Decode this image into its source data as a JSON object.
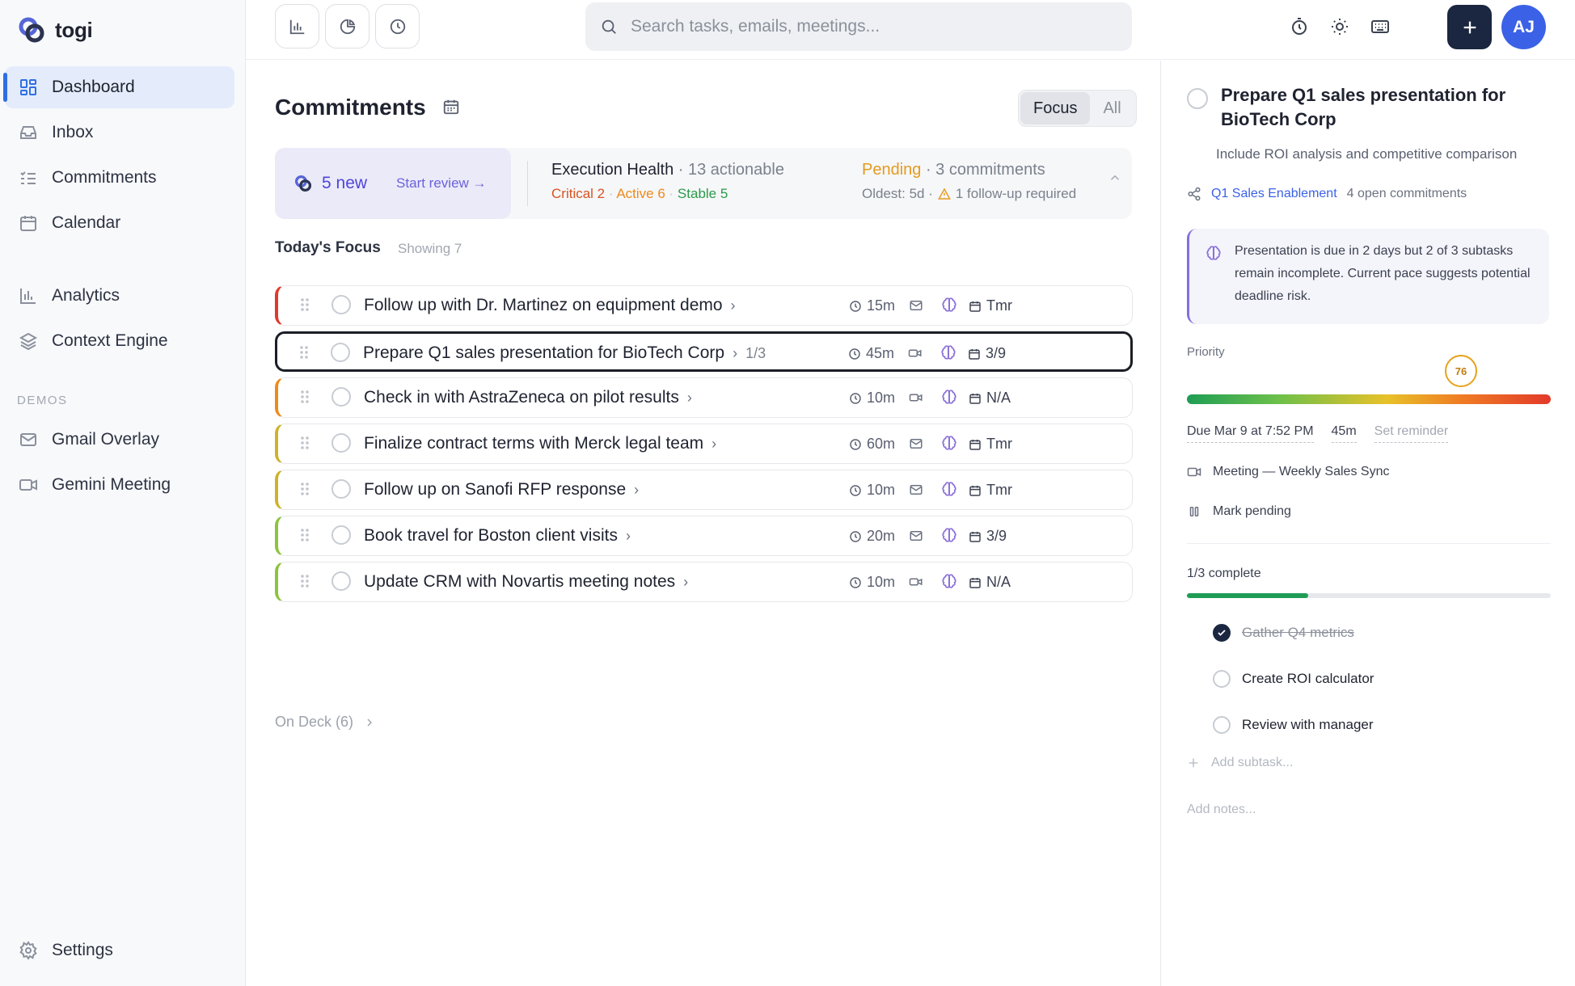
{
  "app": {
    "name": "togi"
  },
  "sidebar": {
    "items": [
      {
        "label": "Dashboard",
        "icon": "grid-icon",
        "active": true
      },
      {
        "label": "Inbox",
        "icon": "inbox-icon"
      },
      {
        "label": "Commitments",
        "icon": "list-check-icon"
      },
      {
        "label": "Calendar",
        "icon": "calendar-icon"
      },
      {
        "label": "Analytics",
        "icon": "bar-chart-icon"
      },
      {
        "label": "Context Engine",
        "icon": "layers-icon"
      }
    ],
    "section_label": "DEMOS",
    "demos": [
      {
        "label": "Gmail Overlay",
        "icon": "mail-icon"
      },
      {
        "label": "Gemini Meeting",
        "icon": "video-icon"
      }
    ],
    "settings_label": "Settings"
  },
  "topbar": {
    "search_placeholder": "Search tasks, emails, meetings...",
    "avatar_initials": "AJ"
  },
  "main": {
    "title": "Commitments",
    "view_toggle": {
      "options": [
        "Focus",
        "All"
      ],
      "selected": "Focus"
    },
    "summary": {
      "new_count": "5 new",
      "start_review": "Start review →",
      "health_title": "Execution Health",
      "actionable": "· 13 actionable",
      "critical": "Critical 2",
      "active": "Active 6",
      "stable": "Stable 5",
      "pending_label": "Pending",
      "pending_count": "· 3 commitments",
      "oldest": "Oldest: 5d ·",
      "followup": "1 follow-up required"
    },
    "focus_title": "Today's Focus",
    "focus_sub": "Showing 7",
    "tasks": [
      {
        "title": "Follow up with Dr. Martinez on equipment demo",
        "sub": "",
        "duration": "15m",
        "source": "mail",
        "due": "Tmr",
        "color": "#e0392b"
      },
      {
        "title": "Prepare Q1 sales presentation for BioTech Corp",
        "sub": "1/3",
        "duration": "45m",
        "source": "video",
        "due": "3/9",
        "color": "#1b1e26"
      },
      {
        "title": "Check in with AstraZeneca on pilot results",
        "sub": "",
        "duration": "10m",
        "source": "video",
        "due": "N/A",
        "color": "#ee8a1a"
      },
      {
        "title": "Finalize contract terms with Merck legal team",
        "sub": "",
        "duration": "60m",
        "source": "mail",
        "due": "Tmr",
        "color": "#cdb32a"
      },
      {
        "title": "Follow up on Sanofi RFP response",
        "sub": "",
        "duration": "10m",
        "source": "mail",
        "due": "Tmr",
        "color": "#cdb32a"
      },
      {
        "title": "Book travel for Boston client visits",
        "sub": "",
        "duration": "20m",
        "source": "mail",
        "due": "3/9",
        "color": "#8cc43c"
      },
      {
        "title": "Update CRM with Novartis meeting notes",
        "sub": "",
        "duration": "10m",
        "source": "video",
        "due": "N/A",
        "color": "#8cc43c"
      }
    ],
    "on_deck": "On Deck (6)"
  },
  "panel": {
    "title": "Prepare Q1 sales presentation for BioTech Corp",
    "description": "Include ROI analysis and competitive comparison",
    "project": "Q1 Sales Enablement",
    "project_open": "4 open commitments",
    "insight": "Presentation is due in 2 days but 2 of 3 subtasks remain incomplete. Current pace suggests potential deadline risk.",
    "priority_label": "Priority",
    "priority_score": "76",
    "due": "Due Mar 9 at 7:52 PM",
    "estimate": "45m",
    "reminder": "Set reminder",
    "meeting": "Meeting — Weekly Sales Sync",
    "mark_pending": "Mark pending",
    "progress_label": "1/3 complete",
    "progress_fraction": 0.333,
    "subtasks": [
      {
        "label": "Gather Q4 metrics",
        "done": true
      },
      {
        "label": "Create ROI calculator",
        "done": false
      },
      {
        "label": "Review with manager",
        "done": false
      }
    ],
    "add_subtask": "Add subtask...",
    "add_notes": "Add notes..."
  }
}
